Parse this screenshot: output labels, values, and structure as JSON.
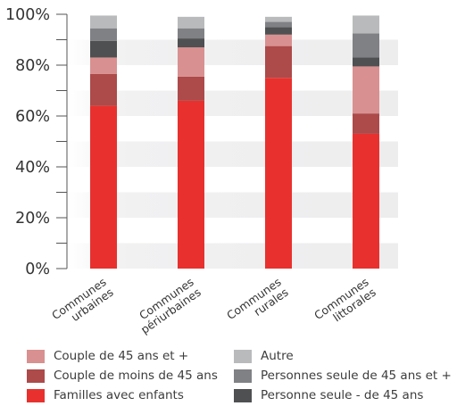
{
  "chart_data": {
    "type": "bar",
    "stacked": true,
    "categories": [
      "Communes urbaines",
      "Communes périurbaines",
      "Communes rurales",
      "Communes littorales"
    ],
    "category_label_lines": [
      [
        "Communes",
        "urbaines"
      ],
      [
        "Communes",
        "périurbaines"
      ],
      [
        "Communes",
        "rurales"
      ],
      [
        "Communes",
        "littorales"
      ]
    ],
    "series": [
      {
        "name": "Familles avec enfants",
        "color": "#e8312e",
        "values": [
          64,
          66,
          75,
          53
        ]
      },
      {
        "name": "Couple de moins de 45 ans",
        "color": "#ad4a4a",
        "values": [
          12.5,
          9.5,
          12.5,
          8
        ]
      },
      {
        "name": "Couple de 45 ans et +",
        "color": "#d99090",
        "values": [
          6.5,
          11.5,
          4.5,
          18.5
        ]
      },
      {
        "name": "Personne seule - de 45 ans",
        "color": "#4f5052",
        "values": [
          6.5,
          3.5,
          3,
          3.5
        ]
      },
      {
        "name": "Personnes seule de 45 ans et +",
        "color": "#808184",
        "values": [
          5,
          4,
          2,
          9.5
        ]
      },
      {
        "name": "Autre",
        "color": "#b9babb",
        "values": [
          5,
          4.5,
          2,
          7
        ]
      }
    ],
    "ylim": [
      0,
      100
    ],
    "ytick_labels": [
      "0%",
      "20%",
      "40%",
      "60%",
      "80%",
      "100%"
    ],
    "grid": "alternating horizontal bands",
    "legend_position": "bottom",
    "xlabel": "",
    "ylabel": "",
    "title": ""
  }
}
